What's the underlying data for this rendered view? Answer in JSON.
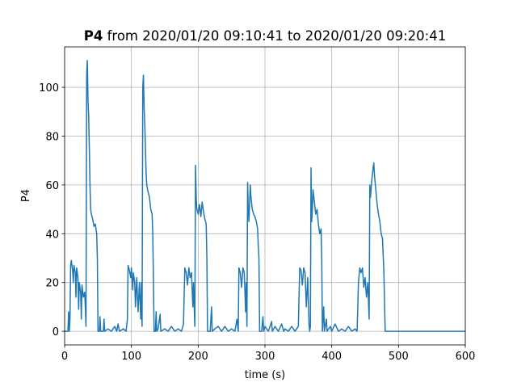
{
  "chart_data": {
    "type": "line",
    "title_parts": [
      "P4",
      "from 2020/01/20 09:10:41 to 2020/01/20 09:20:41"
    ],
    "xlabel": "time (s)",
    "ylabel": "P4",
    "xlim": [
      0,
      600
    ],
    "ylim": [
      -5.6,
      116.6
    ],
    "xticks": [
      0,
      100,
      200,
      300,
      400,
      500,
      600
    ],
    "yticks": [
      0,
      20,
      40,
      60,
      80,
      100
    ],
    "grid": true,
    "x": [
      0,
      5,
      6,
      7,
      8,
      9,
      10,
      12,
      13,
      14,
      16,
      17,
      18,
      20,
      21,
      22,
      24,
      25,
      26,
      28,
      30,
      31,
      32,
      33,
      34,
      35,
      36,
      37,
      38,
      39,
      40,
      42,
      44,
      46,
      48,
      49,
      50,
      52,
      53,
      54,
      58,
      59,
      60,
      65,
      70,
      75,
      78,
      80,
      82,
      88,
      92,
      94,
      95,
      97,
      99,
      100,
      102,
      103,
      105,
      106,
      108,
      110,
      112,
      114,
      115,
      116,
      117,
      118,
      119,
      120,
      121,
      122,
      123,
      125,
      127,
      129,
      131,
      132,
      134,
      136,
      137,
      138,
      140,
      143,
      144,
      150,
      155,
      160,
      165,
      170,
      175,
      178,
      180,
      182,
      184,
      186,
      188,
      190,
      192,
      193,
      195,
      196,
      197,
      198,
      200,
      202,
      204,
      206,
      208,
      210,
      212,
      213,
      214,
      218,
      220,
      221,
      225,
      230,
      235,
      240,
      245,
      250,
      255,
      258,
      260,
      261,
      263,
      265,
      267,
      269,
      271,
      272,
      273,
      274,
      275,
      276,
      278,
      279,
      281,
      283,
      285,
      287,
      289,
      290,
      291,
      292,
      295,
      297,
      298,
      300,
      305,
      310,
      311,
      315,
      320,
      325,
      328,
      330,
      335,
      340,
      345,
      350,
      352,
      354,
      356,
      358,
      360,
      362,
      364,
      366,
      367,
      368,
      369,
      370,
      371,
      372,
      374,
      376,
      378,
      380,
      382,
      384,
      385,
      386,
      388,
      389,
      392,
      393,
      398,
      400,
      405,
      410,
      415,
      420,
      425,
      430,
      435,
      438,
      440,
      442,
      444,
      446,
      448,
      450,
      452,
      454,
      456,
      457,
      458,
      460,
      462,
      463,
      464,
      466,
      468,
      470,
      472,
      474,
      476,
      478,
      480,
      482,
      600
    ],
    "series": [
      {
        "color": "#1f77b4",
        "values": [
          0,
          0,
          8,
          0,
          5,
          27,
          29,
          25,
          20,
          27,
          24,
          14,
          26,
          22,
          9,
          20,
          16,
          5,
          19,
          14,
          16,
          10,
          2,
          105,
          111,
          95,
          88,
          75,
          60,
          50,
          48,
          46,
          43,
          44,
          40,
          30,
          0,
          0,
          6,
          0,
          0,
          5,
          0,
          1,
          0,
          2,
          0,
          3,
          0,
          1,
          0,
          5,
          27,
          25,
          22,
          26,
          17,
          24,
          20,
          10,
          22,
          8,
          20,
          5,
          20,
          2,
          100,
          105,
          92,
          85,
          75,
          65,
          60,
          57,
          55,
          50,
          48,
          40,
          0,
          0,
          8,
          0,
          1,
          7,
          0,
          1,
          0,
          2,
          0,
          1,
          0,
          3,
          26,
          24,
          19,
          26,
          22,
          24,
          10,
          20,
          2,
          68,
          55,
          50,
          48,
          52,
          47,
          53,
          49,
          46,
          44,
          30,
          0,
          0,
          10,
          0,
          1,
          2,
          0,
          2,
          0,
          1,
          0,
          5,
          0,
          26,
          24,
          18,
          26,
          24,
          8,
          20,
          2,
          61,
          50,
          45,
          60,
          55,
          50,
          48,
          47,
          45,
          42,
          35,
          30,
          0,
          0,
          6,
          0,
          2,
          0,
          4,
          0,
          2,
          0,
          3,
          0,
          1,
          0,
          2,
          0,
          2,
          26,
          25,
          19,
          26,
          24,
          10,
          22,
          3,
          0,
          2,
          67,
          45,
          50,
          58,
          53,
          48,
          50,
          44,
          40,
          42,
          30,
          0,
          10,
          0,
          5,
          0,
          2,
          0,
          3,
          0,
          1,
          0,
          2,
          0,
          1,
          0,
          20,
          26,
          24,
          26,
          18,
          22,
          14,
          20,
          5,
          60,
          55,
          62,
          67,
          69,
          64,
          58,
          52,
          48,
          45,
          40,
          38,
          25,
          0,
          0,
          0
        ]
      }
    ]
  }
}
